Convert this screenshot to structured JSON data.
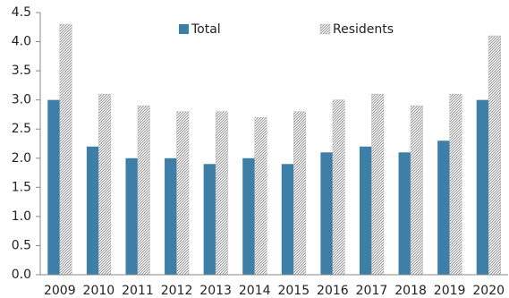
{
  "chart_data": {
    "type": "bar",
    "categories": [
      "2009",
      "2010",
      "2011",
      "2012",
      "2013",
      "2014",
      "2015",
      "2016",
      "2017",
      "2018",
      "2019",
      "2020"
    ],
    "series": [
      {
        "name": "Total",
        "color": "#3d7fa6",
        "values": [
          3.0,
          2.2,
          2.0,
          2.0,
          1.9,
          2.0,
          1.9,
          2.1,
          2.2,
          2.1,
          2.3,
          3.0
        ]
      },
      {
        "name": "Residents",
        "color": "#8c8c8c",
        "values": [
          4.3,
          3.1,
          2.9,
          2.8,
          2.8,
          2.7,
          2.8,
          3.0,
          3.1,
          2.9,
          3.1,
          4.1
        ]
      }
    ],
    "ylim": [
      0,
      4.5
    ],
    "yticks": [
      {
        "value": 0,
        "label": "0.0"
      },
      0.5,
      {
        "value": 1,
        "label": "1.0"
      },
      1.5,
      {
        "value": 2,
        "label": "2.0"
      },
      2.5,
      {
        "value": 3,
        "label": "3.0"
      },
      3.5,
      {
        "value": 4,
        "label": "4.0"
      },
      4.5
    ],
    "grid": false,
    "legend": "top"
  }
}
